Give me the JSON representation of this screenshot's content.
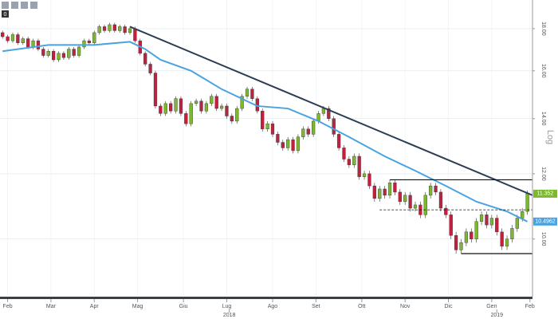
{
  "chart_data": {
    "type": "candlestick",
    "log_scale": true,
    "grid": true,
    "axis_label": "Log",
    "toolbar_label": "0",
    "up_color": "#7cb82f",
    "down_color": "#c0213f",
    "ylim": [
      8.55,
      19.5
    ],
    "yticks": [
      {
        "value": 10,
        "label": "10.00"
      },
      {
        "value": 12,
        "label": "12.00"
      },
      {
        "value": 14,
        "label": "14.00"
      },
      {
        "value": 16,
        "label": "16.00"
      },
      {
        "value": 18,
        "label": "18.00"
      }
    ],
    "xlim": [
      -0.5,
      104
    ],
    "xticks": [
      {
        "value": 1,
        "label": "Feb"
      },
      {
        "value": 9.5,
        "label": "Mar"
      },
      {
        "value": 18,
        "label": "Apr"
      },
      {
        "value": 26.5,
        "label": "Mag"
      },
      {
        "value": 35.5,
        "label": "Giu"
      },
      {
        "value": 44,
        "label": "Lug"
      },
      {
        "value": 53,
        "label": "Ago"
      },
      {
        "value": 61.5,
        "label": "Set"
      },
      {
        "value": 70.5,
        "label": "Ott"
      },
      {
        "value": 79,
        "label": "Nov"
      },
      {
        "value": 87.5,
        "label": "Dic"
      },
      {
        "value": 96,
        "label": "Gen"
      },
      {
        "value": 103.5,
        "label": "Feb"
      }
    ],
    "year_labels": [
      {
        "value": 44.5,
        "label": "2018"
      },
      {
        "value": 97,
        "label": "2019"
      }
    ],
    "candles": {
      "open": [
        17.8,
        17.6,
        17.4,
        17.7,
        17.3,
        17.5,
        17.1,
        17.4,
        17.0,
        16.7,
        16.9,
        16.5,
        16.8,
        16.6,
        17.0,
        16.7,
        17.1,
        17.4,
        17.3,
        17.8,
        18.1,
        17.9,
        18.2,
        17.9,
        18.1,
        17.8,
        18.0,
        17.4,
        16.8,
        16.3,
        15.9,
        14.5,
        14.2,
        14.6,
        14.3,
        14.8,
        14.2,
        13.8,
        14.6,
        14.7,
        14.3,
        14.6,
        14.9,
        14.4,
        14.5,
        14.1,
        13.9,
        14.4,
        14.9,
        15.2,
        14.8,
        14.3,
        13.6,
        13.8,
        13.4,
        13.1,
        12.9,
        13.2,
        12.8,
        13.3,
        13.6,
        13.4,
        13.9,
        14.2,
        14.4,
        14.0,
        13.4,
        12.9,
        12.5,
        12.3,
        12.6,
        11.9,
        12.0,
        11.6,
        11.2,
        11.5,
        11.3,
        11.7,
        11.4,
        11.1,
        11.3,
        10.9,
        11.0,
        10.7,
        11.3,
        11.6,
        11.4,
        10.9,
        10.7,
        10.1,
        9.7,
        9.9,
        10.2,
        10.0,
        10.5,
        10.7,
        10.4,
        10.6,
        10.2,
        9.8,
        10.0,
        10.3,
        10.6,
        10.8
      ],
      "high": [
        17.9,
        17.7,
        17.8,
        17.8,
        17.6,
        17.6,
        17.5,
        17.5,
        17.1,
        17.0,
        17.0,
        16.9,
        16.9,
        17.1,
        17.1,
        17.2,
        17.5,
        17.5,
        17.9,
        18.2,
        18.2,
        18.3,
        18.3,
        18.2,
        18.2,
        18.1,
        18.1,
        17.5,
        16.9,
        16.4,
        16.0,
        14.6,
        14.7,
        14.7,
        14.9,
        14.9,
        14.3,
        14.7,
        14.8,
        14.8,
        14.7,
        15.0,
        15.0,
        14.6,
        14.6,
        14.2,
        14.5,
        15.0,
        15.3,
        15.3,
        14.9,
        14.4,
        13.9,
        13.9,
        13.5,
        13.2,
        13.3,
        13.3,
        13.4,
        13.7,
        13.7,
        14.0,
        14.3,
        14.5,
        14.5,
        14.1,
        13.5,
        13.0,
        12.6,
        12.7,
        12.7,
        12.1,
        12.1,
        11.7,
        11.6,
        11.6,
        11.8,
        11.8,
        11.5,
        11.4,
        11.4,
        11.1,
        11.1,
        11.4,
        11.7,
        11.7,
        11.5,
        11.0,
        10.8,
        10.2,
        10.0,
        10.3,
        10.3,
        10.6,
        10.8,
        10.8,
        10.7,
        10.7,
        10.3,
        10.1,
        10.4,
        10.7,
        10.9,
        11.45
      ],
      "low": [
        17.5,
        17.3,
        17.3,
        17.2,
        17.2,
        17.0,
        17.0,
        16.9,
        16.6,
        16.6,
        16.4,
        16.4,
        16.5,
        16.5,
        16.6,
        16.6,
        17.0,
        17.2,
        17.2,
        17.7,
        17.8,
        17.8,
        17.8,
        17.8,
        17.7,
        17.7,
        17.3,
        16.7,
        16.2,
        15.8,
        14.4,
        14.1,
        14.1,
        14.2,
        14.2,
        14.1,
        13.7,
        13.7,
        14.5,
        14.2,
        14.2,
        14.5,
        14.3,
        14.3,
        14.0,
        13.8,
        13.8,
        14.3,
        14.8,
        14.7,
        14.2,
        13.5,
        13.5,
        13.3,
        13.0,
        12.8,
        12.8,
        12.7,
        12.7,
        13.2,
        13.3,
        13.3,
        13.8,
        14.1,
        13.9,
        13.3,
        12.8,
        12.4,
        12.2,
        12.2,
        11.8,
        11.8,
        11.5,
        11.1,
        11.1,
        11.2,
        11.2,
        11.3,
        11.0,
        11.0,
        10.8,
        10.8,
        10.6,
        10.6,
        11.2,
        11.3,
        10.8,
        10.6,
        10.0,
        9.6,
        9.6,
        9.8,
        9.9,
        9.9,
        10.4,
        10.3,
        10.3,
        10.1,
        9.7,
        9.7,
        9.9,
        10.2,
        10.5,
        10.7
      ],
      "close": [
        17.6,
        17.4,
        17.7,
        17.3,
        17.5,
        17.1,
        17.4,
        17.0,
        16.7,
        16.9,
        16.5,
        16.8,
        16.6,
        17.0,
        16.7,
        17.1,
        17.4,
        17.3,
        17.8,
        18.1,
        17.9,
        18.2,
        17.9,
        18.1,
        17.8,
        18.0,
        17.4,
        16.8,
        16.3,
        15.9,
        14.5,
        14.2,
        14.6,
        14.3,
        14.8,
        14.2,
        13.8,
        14.6,
        14.7,
        14.3,
        14.6,
        14.9,
        14.4,
        14.5,
        14.1,
        13.9,
        14.4,
        14.9,
        15.2,
        14.8,
        14.3,
        13.6,
        13.8,
        13.4,
        13.1,
        12.9,
        13.2,
        12.8,
        13.3,
        13.6,
        13.4,
        13.9,
        14.2,
        14.4,
        14.0,
        13.4,
        12.9,
        12.5,
        12.3,
        12.6,
        11.9,
        12.0,
        11.6,
        11.2,
        11.5,
        11.3,
        11.7,
        11.4,
        11.1,
        11.3,
        10.9,
        11.0,
        10.7,
        11.3,
        11.6,
        11.4,
        10.9,
        10.7,
        10.1,
        9.7,
        9.9,
        10.2,
        10.0,
        10.5,
        10.7,
        10.4,
        10.6,
        10.2,
        9.8,
        10.0,
        10.3,
        10.6,
        10.8,
        11.35
      ]
    },
    "last_label": "11.352",
    "moving_average": {
      "color": "#4aa3e0",
      "end_label": "10.4962",
      "x": [
        0,
        9,
        18,
        25,
        28,
        31,
        37,
        43,
        50,
        56,
        62,
        68,
        75,
        81,
        87,
        93,
        99,
        103
      ],
      "values": [
        16.9,
        17.2,
        17.2,
        17.35,
        17.0,
        16.5,
        16.0,
        15.2,
        14.5,
        14.4,
        13.9,
        13.3,
        12.6,
        12.1,
        11.6,
        11.1,
        10.8,
        10.5
      ]
    },
    "trendline": {
      "color": "#2c3e55",
      "x": [
        25,
        104
      ],
      "values": [
        18.1,
        11.3
      ]
    },
    "levels": [
      {
        "value": 11.8,
        "x": [
          76,
          104
        ],
        "style": "solid"
      },
      {
        "value": 10.85,
        "x": [
          74,
          104
        ],
        "style": "dashed"
      },
      {
        "value": 9.6,
        "x": [
          90,
          104
        ],
        "style": "solid"
      }
    ]
  }
}
